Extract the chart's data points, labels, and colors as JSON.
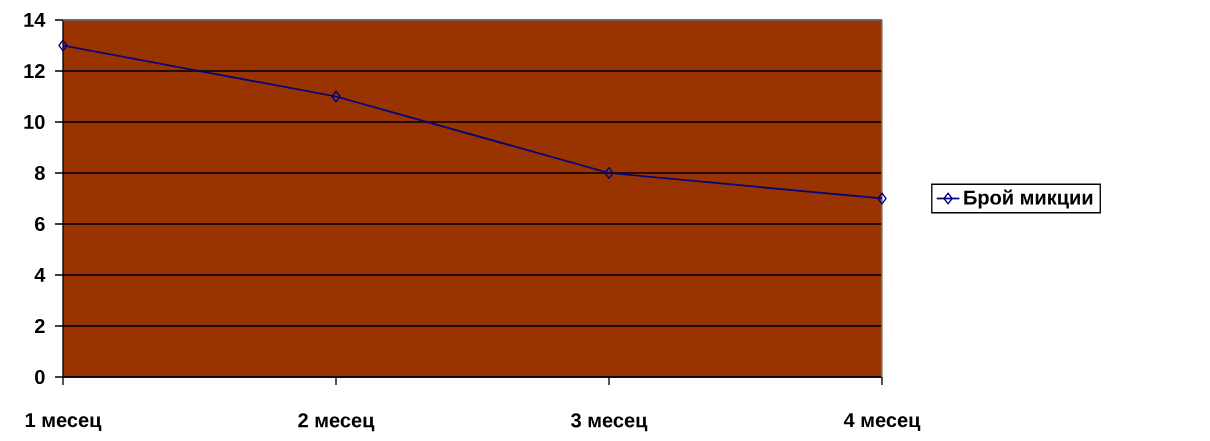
{
  "chart_data": {
    "type": "line",
    "categories": [
      "1 месец",
      "2 месец",
      "3 месец",
      "4 месец"
    ],
    "series": [
      {
        "name": "Брой микции",
        "color": "#000080",
        "values": [
          13,
          11,
          8,
          7
        ]
      }
    ],
    "ylim": [
      0,
      14
    ],
    "yticks": [
      0,
      2,
      4,
      6,
      8,
      10,
      12,
      14
    ],
    "grid": "y",
    "legend": "right",
    "marker": "diamond",
    "line_style": "solid"
  }
}
